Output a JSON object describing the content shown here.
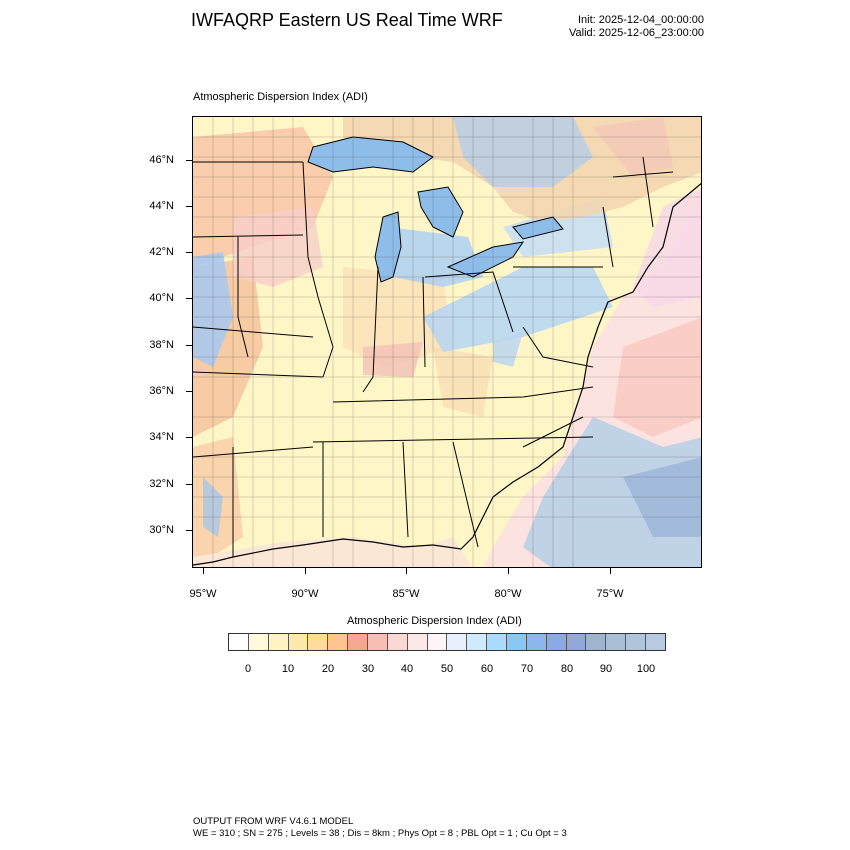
{
  "header": {
    "title": "IWFAQRP Eastern US Real Time WRF",
    "init": "Init: 2025-12-04_00:00:00",
    "valid": "Valid: 2025-12-06_23:00:00"
  },
  "map": {
    "title": "Atmospheric Dispersion Index   (ADI)",
    "lat_labels": [
      "46°N",
      "44°N",
      "42°N",
      "40°N",
      "38°N",
      "36°N",
      "34°N",
      "32°N",
      "30°N"
    ],
    "lon_labels": [
      "95°W",
      "90°W",
      "85°W",
      "80°W",
      "75°W"
    ]
  },
  "colorbar": {
    "title": "Atmospheric Dispersion Index  (ADI)",
    "labels": [
      "0",
      "10",
      "20",
      "30",
      "40",
      "50",
      "60",
      "70",
      "80",
      "90",
      "100"
    ],
    "colors": [
      "#ffffff",
      "#fffadc",
      "#fff3bf",
      "#ffe9a8",
      "#ffdc9e",
      "#ffc48f",
      "#f5a890",
      "#f7bfb8",
      "#fad8d6",
      "#fbe8e8",
      "#fff5f8",
      "#e8f0ff",
      "#cfe9ff",
      "#a8dcff",
      "#88c8f5",
      "#8ab8ee",
      "#8aa9e6",
      "#93a8d8",
      "#9eb4cf",
      "#a9bfd6",
      "#b0c4da",
      "#b8cadf"
    ]
  },
  "footer": {
    "line1": "OUTPUT FROM WRF V4.6.1 MODEL",
    "line2": "WE = 310 ; SN = 275 ; Levels = 38 ; Dis = 8km ; Phys Opt = 8 ; PBL Opt = 1 ; Cu Opt = 3"
  }
}
